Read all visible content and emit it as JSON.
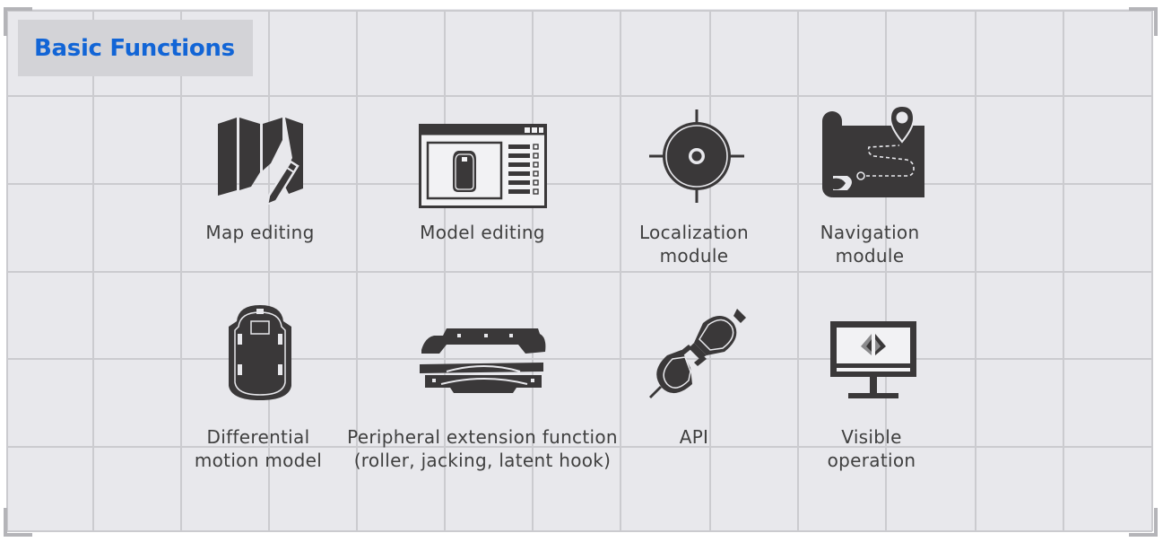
{
  "title": "Basic Functions",
  "colors": {
    "accent": "#1265d6",
    "icon": "#3a3839",
    "panel": "#e8e8ec",
    "grid": "#c8c8cc"
  },
  "functions": [
    {
      "icon": "map-pencil-icon",
      "line1": "Map editing",
      "line2": ""
    },
    {
      "icon": "model-window-icon",
      "line1": "Model editing",
      "line2": ""
    },
    {
      "icon": "crosshair-target-icon",
      "line1": "Localization",
      "line2": "module"
    },
    {
      "icon": "navigation-map-pin-icon",
      "line1": "Navigation",
      "line2": "module"
    },
    {
      "icon": "robot-chassis-icon",
      "line1": "Differential",
      "line2": "motion model"
    },
    {
      "icon": "peripheral-jacking-icon",
      "line1": "Peripheral extension function",
      "line2": "(roller, jacking, latent hook)"
    },
    {
      "icon": "plug-socket-icon",
      "line1": "API",
      "line2": ""
    },
    {
      "icon": "monitor-icon",
      "line1": "Visible",
      "line2": "operation"
    }
  ]
}
